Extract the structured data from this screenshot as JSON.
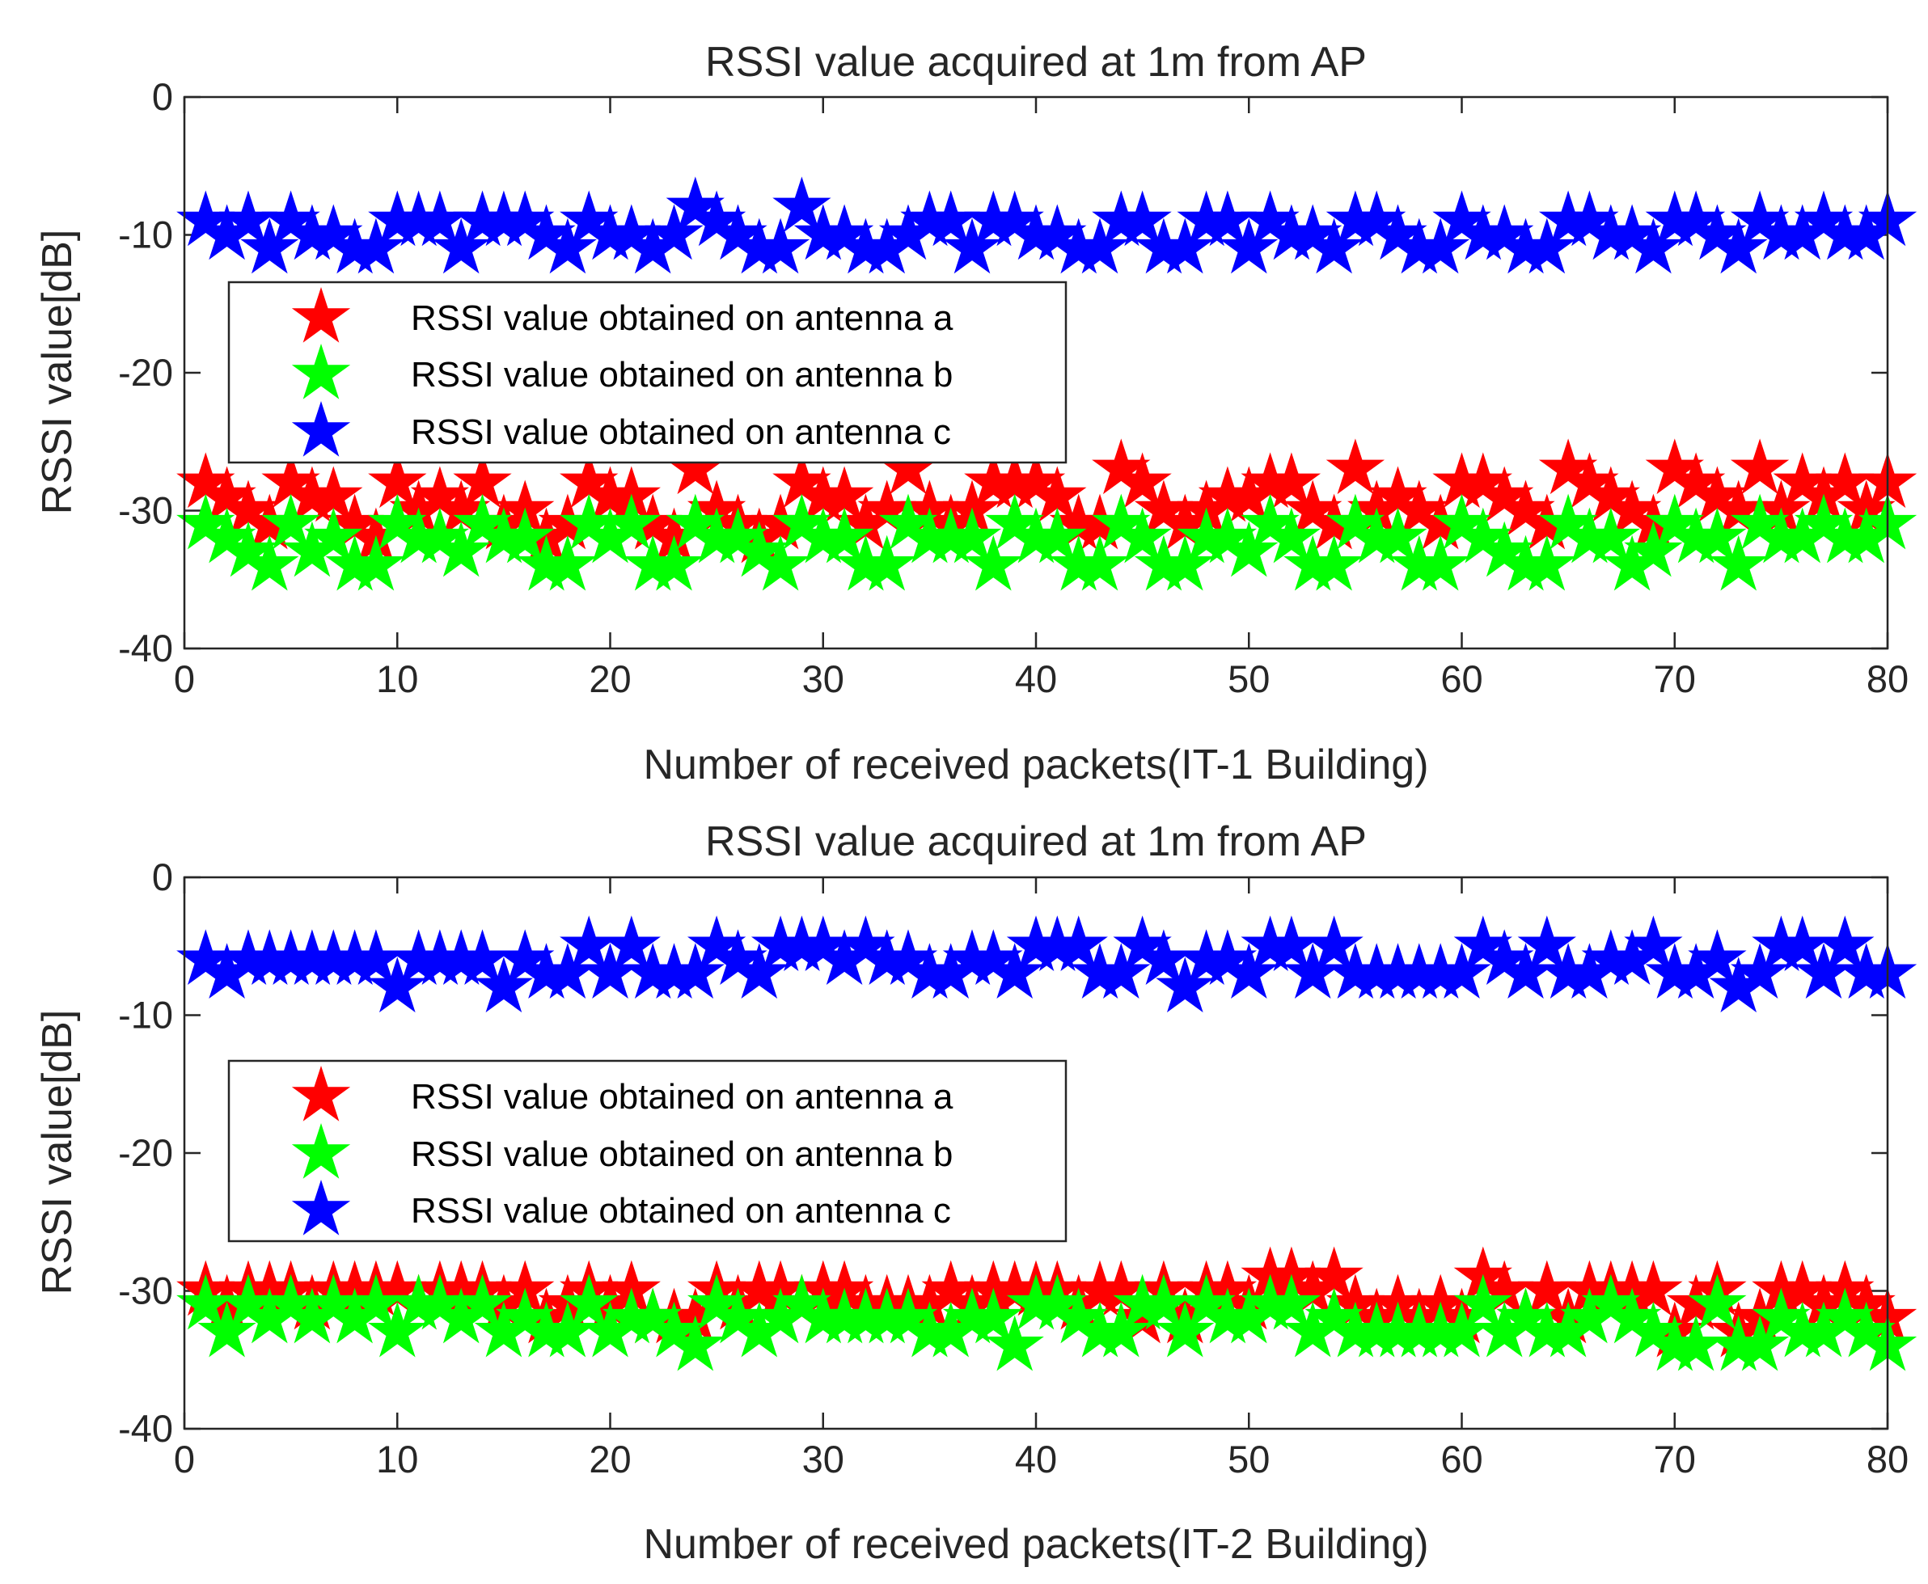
{
  "chart_data": [
    {
      "type": "scatter",
      "title": "RSSI value acquired at 1m from AP",
      "xlabel": "Number of received packets(IT-1 Building)",
      "ylabel": "RSSI value[dB]",
      "xlim": [
        0,
        80
      ],
      "ylim": [
        -40,
        0
      ],
      "xticks": [
        "0",
        "10",
        "20",
        "30",
        "40",
        "50",
        "60",
        "70",
        "80"
      ],
      "yticks": [
        "0",
        "-10",
        "-20",
        "-30",
        "-40"
      ],
      "marker": "star",
      "legend_position": "upper-left",
      "x": [
        1,
        2,
        3,
        4,
        5,
        6,
        7,
        8,
        9,
        10,
        11,
        12,
        13,
        14,
        15,
        16,
        17,
        18,
        19,
        20,
        21,
        22,
        23,
        24,
        25,
        26,
        27,
        28,
        29,
        30,
        31,
        32,
        33,
        34,
        35,
        36,
        37,
        38,
        39,
        40,
        41,
        42,
        43,
        44,
        45,
        46,
        47,
        48,
        49,
        50,
        51,
        52,
        53,
        54,
        55,
        56,
        57,
        58,
        59,
        60,
        61,
        62,
        63,
        64,
        65,
        66,
        67,
        68,
        69,
        70,
        71,
        72,
        73,
        74,
        75,
        76,
        77,
        78,
        79,
        80
      ],
      "series": [
        {
          "name": "RSSI value obtained on antenna a",
          "color": "#ff0000",
          "values": [
            -28,
            -29,
            -30,
            -31,
            -28,
            -29,
            -29,
            -31,
            -32,
            -28,
            -30,
            -29,
            -30,
            -28,
            -31,
            -30,
            -32,
            -31,
            -28,
            -29,
            -29,
            -31,
            -32,
            -27,
            -30,
            -31,
            -32,
            -31,
            -28,
            -29,
            -29,
            -31,
            -30,
            -27,
            -30,
            -31,
            -30,
            -28,
            -28,
            -28,
            -29,
            -31,
            -31,
            -27,
            -28,
            -30,
            -31,
            -30,
            -29,
            -29,
            -28,
            -28,
            -30,
            -31,
            -27,
            -30,
            -29,
            -30,
            -31,
            -28,
            -28,
            -29,
            -30,
            -31,
            -27,
            -28,
            -29,
            -30,
            -31,
            -27,
            -28,
            -29,
            -30,
            -27,
            -30,
            -28,
            -29,
            -28,
            -30,
            -28
          ]
        },
        {
          "name": "RSSI value obtained on antenna b",
          "color": "#00ff00",
          "values": [
            -31,
            -32,
            -33,
            -34,
            -31,
            -33,
            -32,
            -34,
            -34,
            -31,
            -32,
            -32,
            -33,
            -31,
            -32,
            -32,
            -34,
            -34,
            -31,
            -32,
            -31,
            -34,
            -34,
            -31,
            -32,
            -32,
            -33,
            -34,
            -31,
            -32,
            -32,
            -34,
            -34,
            -31,
            -32,
            -32,
            -32,
            -34,
            -31,
            -32,
            -32,
            -34,
            -34,
            -31,
            -32,
            -34,
            -34,
            -32,
            -32,
            -33,
            -31,
            -32,
            -34,
            -34,
            -31,
            -32,
            -32,
            -34,
            -34,
            -31,
            -32,
            -33,
            -34,
            -34,
            -31,
            -32,
            -32,
            -34,
            -33,
            -31,
            -32,
            -32,
            -34,
            -31,
            -32,
            -32,
            -31,
            -32,
            -32,
            -31
          ]
        },
        {
          "name": "RSSI value obtained on antenna c",
          "color": "#0000ff",
          "values": [
            -9,
            -10,
            -9,
            -11,
            -9,
            -10,
            -10,
            -11,
            -11,
            -9,
            -9,
            -9,
            -11,
            -9,
            -9,
            -9,
            -10,
            -11,
            -9,
            -10,
            -10,
            -11,
            -10,
            -8,
            -9,
            -10,
            -11,
            -11,
            -8,
            -10,
            -10,
            -11,
            -11,
            -10,
            -9,
            -9,
            -11,
            -9,
            -9,
            -10,
            -10,
            -11,
            -11,
            -9,
            -9,
            -11,
            -11,
            -9,
            -9,
            -11,
            -9,
            -10,
            -10,
            -11,
            -9,
            -9,
            -10,
            -11,
            -11,
            -9,
            -10,
            -10,
            -11,
            -11,
            -9,
            -9,
            -10,
            -10,
            -11,
            -9,
            -9,
            -10,
            -11,
            -9,
            -10,
            -10,
            -9,
            -10,
            -10,
            -9
          ]
        }
      ]
    },
    {
      "type": "scatter",
      "title": "RSSI value acquired at 1m from AP",
      "xlabel": "Number of received packets(IT-2 Building)",
      "ylabel": "RSSI value[dB]",
      "xlim": [
        0,
        80
      ],
      "ylim": [
        -40,
        0
      ],
      "xticks": [
        "0",
        "10",
        "20",
        "30",
        "40",
        "50",
        "60",
        "70",
        "80"
      ],
      "yticks": [
        "0",
        "-10",
        "-20",
        "-30",
        "-40"
      ],
      "marker": "star",
      "legend_position": "middle-left",
      "x": [
        1,
        2,
        3,
        4,
        5,
        6,
        7,
        8,
        9,
        10,
        11,
        12,
        13,
        14,
        15,
        16,
        17,
        18,
        19,
        20,
        21,
        22,
        23,
        24,
        25,
        26,
        27,
        28,
        29,
        30,
        31,
        32,
        33,
        34,
        35,
        36,
        37,
        38,
        39,
        40,
        41,
        42,
        43,
        44,
        45,
        46,
        47,
        48,
        49,
        50,
        51,
        52,
        53,
        54,
        55,
        56,
        57,
        58,
        59,
        60,
        61,
        62,
        63,
        64,
        65,
        66,
        67,
        68,
        69,
        70,
        71,
        72,
        73,
        74,
        75,
        76,
        77,
        78,
        79,
        80
      ],
      "series": [
        {
          "name": "RSSI value obtained on antenna a",
          "color": "#ff0000",
          "values": [
            -30,
            -31,
            -30,
            -30,
            -30,
            -31,
            -30,
            -30,
            -30,
            -30,
            -31,
            -30,
            -30,
            -30,
            -31,
            -30,
            -32,
            -31,
            -30,
            -31,
            -30,
            -32,
            -32,
            -32,
            -30,
            -31,
            -30,
            -30,
            -31,
            -30,
            -30,
            -31,
            -31,
            -31,
            -31,
            -30,
            -31,
            -30,
            -30,
            -30,
            -30,
            -31,
            -30,
            -30,
            -32,
            -30,
            -32,
            -30,
            -30,
            -31,
            -29,
            -29,
            -30,
            -29,
            -31,
            -32,
            -31,
            -32,
            -31,
            -32,
            -29,
            -30,
            -32,
            -30,
            -32,
            -30,
            -30,
            -30,
            -30,
            -33,
            -31,
            -30,
            -33,
            -32,
            -30,
            -30,
            -31,
            -30,
            -31,
            -32
          ]
        },
        {
          "name": "RSSI value obtained on antenna b",
          "color": "#00ff00",
          "values": [
            -31,
            -33,
            -31,
            -32,
            -31,
            -32,
            -31,
            -32,
            -31,
            -33,
            -31,
            -31,
            -32,
            -31,
            -33,
            -32,
            -33,
            -33,
            -31,
            -33,
            -32,
            -32,
            -33,
            -34,
            -31,
            -32,
            -33,
            -32,
            -31,
            -32,
            -32,
            -32,
            -32,
            -32,
            -33,
            -33,
            -32,
            -32,
            -34,
            -31,
            -31,
            -32,
            -33,
            -33,
            -31,
            -31,
            -33,
            -31,
            -32,
            -32,
            -31,
            -31,
            -33,
            -32,
            -33,
            -33,
            -33,
            -33,
            -33,
            -33,
            -31,
            -33,
            -32,
            -33,
            -33,
            -32,
            -31,
            -32,
            -33,
            -34,
            -34,
            -31,
            -34,
            -34,
            -32,
            -33,
            -33,
            -32,
            -33,
            -34
          ]
        },
        {
          "name": "RSSI value obtained on antenna c",
          "color": "#0000ff",
          "values": [
            -6,
            -7,
            -6,
            -6,
            -6,
            -6,
            -6,
            -6,
            -6,
            -8,
            -6,
            -6,
            -6,
            -6,
            -8,
            -6,
            -7,
            -7,
            -5,
            -7,
            -5,
            -7,
            -7,
            -7,
            -5,
            -6,
            -7,
            -5,
            -5,
            -5,
            -6,
            -5,
            -6,
            -6,
            -7,
            -7,
            -6,
            -6,
            -7,
            -5,
            -5,
            -5,
            -7,
            -7,
            -5,
            -6,
            -8,
            -6,
            -6,
            -7,
            -5,
            -5,
            -7,
            -5,
            -7,
            -7,
            -7,
            -7,
            -7,
            -7,
            -5,
            -6,
            -7,
            -5,
            -7,
            -7,
            -6,
            -6,
            -5,
            -7,
            -7,
            -6,
            -8,
            -7,
            -5,
            -5,
            -7,
            -5,
            -7,
            -7
          ]
        }
      ]
    }
  ]
}
